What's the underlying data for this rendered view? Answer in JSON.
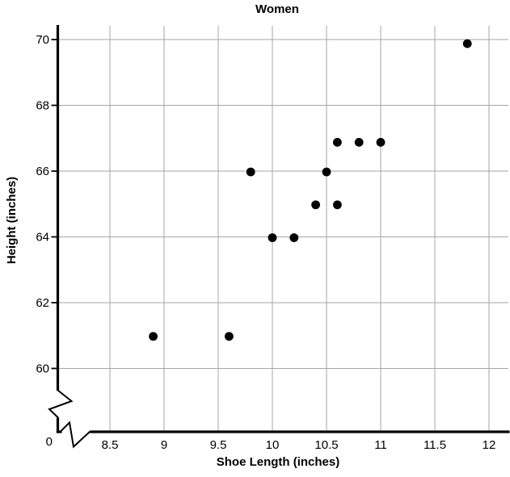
{
  "chart_data": {
    "type": "scatter",
    "title": "Women",
    "xlabel": "Shoe Length (inches)",
    "ylabel": "Height (inches)",
    "origin_label": "0",
    "x_ticks": [
      8.5,
      9,
      9.5,
      10,
      10.5,
      11,
      11.5,
      12
    ],
    "x_tick_labels": [
      "8.5",
      "9",
      "9.5",
      "10",
      "10.5",
      "11",
      "11.5",
      "12"
    ],
    "y_ticks": [
      60,
      62,
      64,
      66,
      68,
      70
    ],
    "y_tick_labels": [
      "60",
      "62",
      "64",
      "66",
      "68",
      "70"
    ],
    "xlim": [
      8.5,
      12
    ],
    "ylim": [
      60,
      70
    ],
    "grid": true,
    "legend": false,
    "x_axis_break": true,
    "y_axis_break": true,
    "marker": "filled-circle",
    "marker_color": "#000000",
    "grid_color": "#a6a6a6",
    "axis_color": "#000000",
    "points": [
      {
        "x": 8.9,
        "y": 61
      },
      {
        "x": 9.6,
        "y": 61
      },
      {
        "x": 9.8,
        "y": 66
      },
      {
        "x": 10.0,
        "y": 64
      },
      {
        "x": 10.2,
        "y": 64
      },
      {
        "x": 10.4,
        "y": 65
      },
      {
        "x": 10.5,
        "y": 66
      },
      {
        "x": 10.6,
        "y": 65
      },
      {
        "x": 10.6,
        "y": 66.9
      },
      {
        "x": 10.8,
        "y": 66.9
      },
      {
        "x": 11.0,
        "y": 66.9
      },
      {
        "x": 11.8,
        "y": 69.9
      }
    ]
  }
}
